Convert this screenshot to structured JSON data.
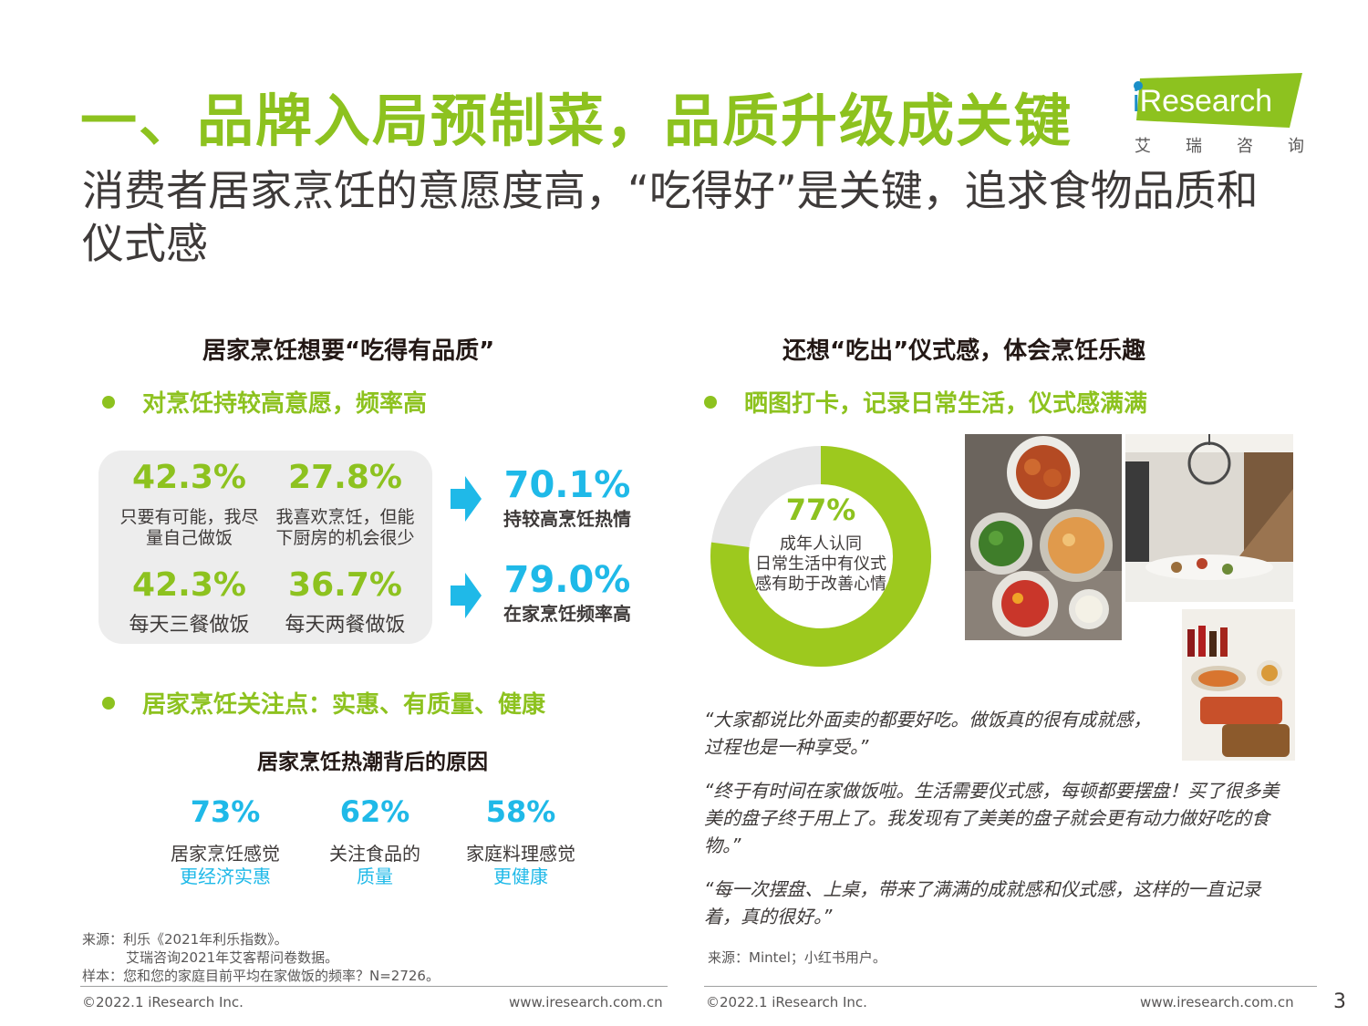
{
  "header": {
    "title": "一、品牌入局预制菜，品质升级成关键",
    "subtitle": "消费者居家烹饪的意愿度高，“吃得好”是关键，追求食物品质和仪式感"
  },
  "logo": {
    "brand_i": "i",
    "brand_rest": "Research",
    "cn_chars": [
      "艾",
      "瑞",
      "咨",
      "询"
    ],
    "color": "#8dc21f"
  },
  "left": {
    "heading": "居家烹饪想要“吃得有品质”",
    "bullet1": "对烹饪持较高意愿，频率高",
    "stats": [
      {
        "pct": "42.3%",
        "line1": "只要有可能，我尽",
        "line2": "量自己做饭"
      },
      {
        "pct": "27.8%",
        "line1": "我喜欢烹饪，但能",
        "line2": "下厨房的机会很少"
      },
      {
        "pct": "42.3%",
        "line1": "每天三餐做饭"
      },
      {
        "pct": "36.7%",
        "line1": "每天两餐做饭"
      }
    ],
    "results": [
      {
        "pct": "70.1%",
        "label": "持较高烹饪热情"
      },
      {
        "pct": "79.0%",
        "label": "在家烹饪频率高"
      }
    ],
    "bullet2": "居家烹饪关注点：实惠、有质量、健康",
    "reasons_heading": "居家烹饪热潮背后的原因",
    "reasons": [
      {
        "pct": "73%",
        "line1": "居家烹饪感觉",
        "line2": "更经济实惠"
      },
      {
        "pct": "62%",
        "line1": "关注食品的",
        "line2": "质量"
      },
      {
        "pct": "58%",
        "line1": "家庭料理感觉",
        "line2": "更健康"
      }
    ],
    "source_lines": [
      "来源：利乐《2021年利乐指数》。",
      "艾瑞咨询2021年艾客帮问卷数据。",
      "样本：您和您的家庭目前平均在家做饭的频率？N=2726。"
    ]
  },
  "right": {
    "heading": "还想“吃出”仪式感，体会烹饪乐趣",
    "bullet1": "晒图打卡，记录日常生活，仪式感满满",
    "donut": {
      "pct_label": "77%",
      "value": 0.77,
      "line1": "成年人认同",
      "line2": "日常生活中有仪式",
      "line3": "感有助于改善心情",
      "color_main": "#9dc91e",
      "color_rest": "#e6e6e6"
    },
    "quotes": [
      "“大家都说比外面卖的都要好吃。做饭真的很有成就感，过程也是一种享受。”",
      "“终于有时间在家做饭啦。生活需要仪式感，每顿都要摆盘！买了很多美美的盘子终于用上了。我发现有了美美的盘子就会更有动力做好吃的食物。”",
      "“每一次摆盘、上桌，带来了满满的成就感和仪式感，这样的一直记录着，真的很好。”"
    ],
    "source": "来源：Mintel；小红书用户。"
  },
  "footer": {
    "copyright_left": "©2022.1 iResearch Inc.",
    "url_left": "www.iresearch.com.cn",
    "copyright_right": "©2022.1 iResearch Inc.",
    "url_right": "www.iresearch.com.cn",
    "page": "3"
  }
}
